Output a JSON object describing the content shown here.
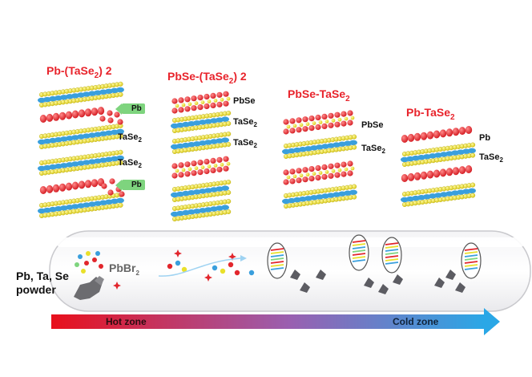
{
  "structures": [
    {
      "name": "Pb-(TaSe",
      "sub": "2",
      "suffix": ") 2",
      "labels": {
        "pb_top": "Pb",
        "tase2_1": "TaSe",
        "tase2_2": "TaSe",
        "pb_bottom": "Pb"
      }
    },
    {
      "name": "PbSe-(TaSe",
      "sub": "2",
      "suffix": ") 2",
      "labels": {
        "pbse": "PbSe",
        "tase2_1": "TaSe",
        "tase2_2": "TaSe"
      }
    },
    {
      "name": "PbSe-TaSe",
      "sub": "2",
      "suffix": "",
      "labels": {
        "pbse": "PbSe",
        "tase2": "TaSe"
      }
    },
    {
      "name": "Pb-TaSe",
      "sub": "2",
      "suffix": "",
      "labels": {
        "pb": "Pb",
        "tase2": "TaSe"
      }
    }
  ],
  "subscript_2": "2",
  "tube": {
    "precursor_label_line1": "Pb, Ta, Se",
    "precursor_label_line2": "powder",
    "transport_agent": "PbBr",
    "transport_agent_sub": "2"
  },
  "gradient": {
    "hot_label": "Hot zone",
    "cold_label": "Cold zone",
    "hot_color": "#e8101c",
    "cold_color": "#2aa7e6"
  },
  "colors": {
    "red_atom": "#e2262c",
    "yellow_atom": "#e9e02a",
    "blue_band": "#3a9fdd",
    "pb_tag": "#7ed47e"
  }
}
